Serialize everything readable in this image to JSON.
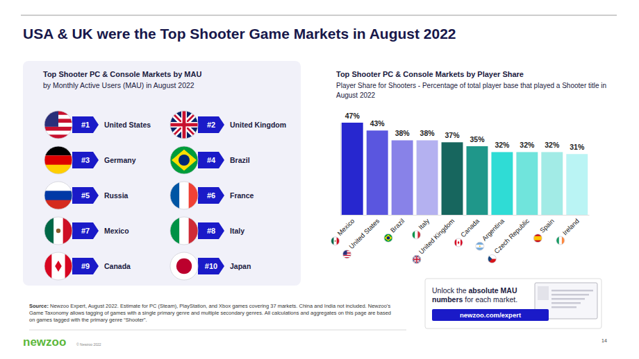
{
  "title": "USA & UK were the Top Shooter Game Markets in August 2022",
  "ranking": {
    "title": "Top Shooter PC & Console Markets by MAU",
    "subtitle": "by Monthly Active Users (MAU) in August 2022",
    "items": [
      {
        "rank": "#1",
        "country": "United States"
      },
      {
        "rank": "#2",
        "country": "United Kingdom"
      },
      {
        "rank": "#3",
        "country": "Germany"
      },
      {
        "rank": "#4",
        "country": "Brazil"
      },
      {
        "rank": "#5",
        "country": "Russia"
      },
      {
        "rank": "#6",
        "country": "France"
      },
      {
        "rank": "#7",
        "country": "Mexico"
      },
      {
        "rank": "#8",
        "country": "Italy"
      },
      {
        "rank": "#9",
        "country": "Canada"
      },
      {
        "rank": "#10",
        "country": "Japan"
      }
    ]
  },
  "chart_data": {
    "type": "bar",
    "title": "Top Shooter PC & Console Markets by Player Share",
    "subtitle": "Player Share for Shooters - Percentage of total player base that played a Shooter title in August 2022",
    "categories": [
      "Mexico",
      "United States",
      "Brazil",
      "Italy",
      "United Kingdom",
      "Canada",
      "Argentina",
      "Czech Republic",
      "Spain",
      "Ireland"
    ],
    "values": [
      47,
      43,
      38,
      38,
      37,
      35,
      32,
      32,
      32,
      31
    ],
    "value_labels": [
      "47%",
      "43%",
      "38%",
      "38%",
      "37%",
      "35%",
      "32%",
      "32%",
      "32%",
      "31%"
    ],
    "colors": [
      "#2727cf",
      "#5a56df",
      "#8882e8",
      "#b4b1f0",
      "#17665e",
      "#1f978a",
      "#2fdcd5",
      "#70e4dc",
      "#a2ebe6",
      "#baf4f4"
    ],
    "ylim": [
      0,
      47
    ],
    "grid": false,
    "data_labels": true,
    "tick_labels": "x"
  },
  "source": {
    "label": "Source:",
    "text": "Newzoo Expert, August 2022. Estimate for PC (Steam), PlayStation, and Xbox games covering 37 markets. China and India not included. Newzoo’s Game Taxonomy allows tagging of games with a single primary genre and multiple secondary genres. All calculations and aggregates on this page are based on games tagged with the primary genre “Shooter”."
  },
  "promo": {
    "text_before": "Unlock the",
    "text_bold": "absolute MAU numbers",
    "text_after": "for each market.",
    "button": "newzoo.com/expert"
  },
  "logo": "newzoo",
  "copyright": "© Newzoo 2022",
  "page_number": "14"
}
